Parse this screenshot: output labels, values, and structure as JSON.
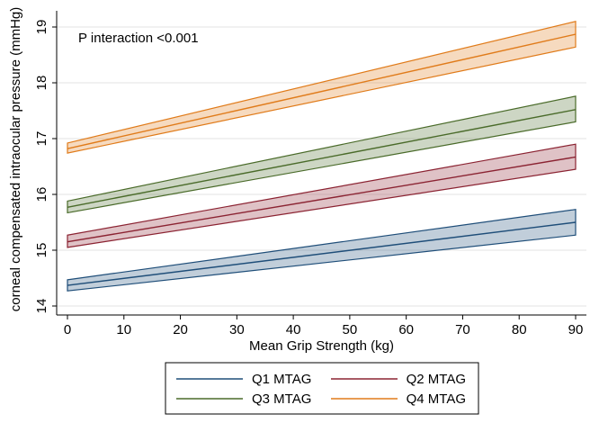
{
  "chart_data": {
    "type": "line",
    "title": "",
    "annotation": "P interaction <0.001",
    "xlabel": "Mean Grip Strength (kg)",
    "ylabel": "corneal compensated intraocular pressure (mmHg)",
    "xlim": [
      0,
      90
    ],
    "ylim": [
      14,
      19
    ],
    "xticks": [
      0,
      10,
      20,
      30,
      40,
      50,
      60,
      70,
      80,
      90
    ],
    "yticks": [
      14,
      15,
      16,
      17,
      18,
      19
    ],
    "grid": "horizontal",
    "legend_position": "bottom",
    "x": [
      0,
      90
    ],
    "series": [
      {
        "name": "Q1 MTAG",
        "color": "#1f4e79",
        "fill": "#1f4e79",
        "values": [
          14.37,
          15.5
        ],
        "lower": [
          14.27,
          15.27
        ],
        "upper": [
          14.47,
          15.73
        ]
      },
      {
        "name": "Q2 MTAG",
        "color": "#8b2332",
        "fill": "#8b2332",
        "values": [
          15.15,
          16.67
        ],
        "lower": [
          15.05,
          16.45
        ],
        "upper": [
          15.27,
          16.9
        ]
      },
      {
        "name": "Q3 MTAG",
        "color": "#4a6b2a",
        "fill": "#4a6b2a",
        "values": [
          15.77,
          17.52
        ],
        "lower": [
          15.67,
          17.3
        ],
        "upper": [
          15.88,
          17.76
        ]
      },
      {
        "name": "Q4 MTAG",
        "color": "#e07b1a",
        "fill": "#e07b1a",
        "values": [
          16.82,
          18.87
        ],
        "lower": [
          16.74,
          18.64
        ],
        "upper": [
          16.92,
          19.1
        ]
      }
    ]
  }
}
